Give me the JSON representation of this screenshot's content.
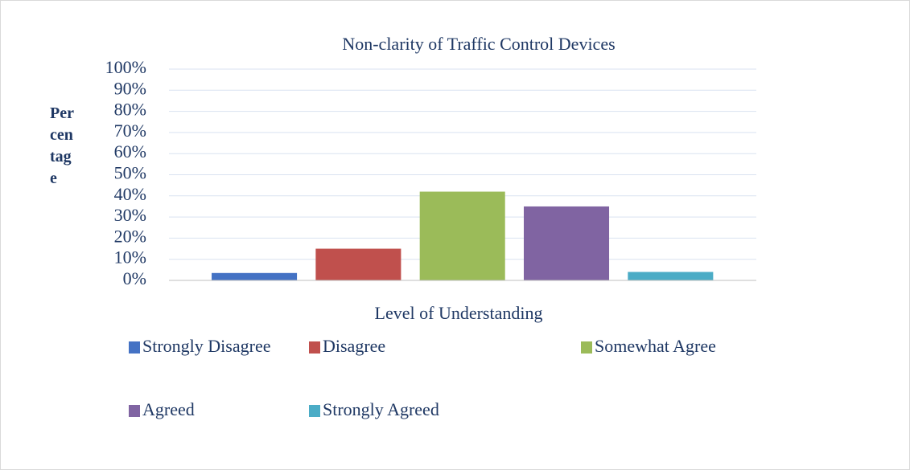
{
  "chart_data": {
    "type": "bar",
    "title": "Non-clarity of Traffic Control Devices",
    "xlabel": "Level of Understanding",
    "ylabel": "Percentage",
    "series": [
      {
        "name": "Strongly Disagree",
        "color": "#4472c4",
        "values": [
          3.5
        ]
      },
      {
        "name": "Disagree",
        "color": "#c0504d",
        "values": [
          15
        ]
      },
      {
        "name": "Somewhat Agree",
        "color": "#9bbb59",
        "values": [
          42
        ]
      },
      {
        "name": "Agreed",
        "color": "#8064a2",
        "values": [
          35
        ]
      },
      {
        "name": "Strongly Agreed",
        "color": "#4bacc6",
        "values": [
          4
        ]
      }
    ],
    "ylim": [
      0,
      100
    ],
    "yticks": [
      {
        "value": 0,
        "label": "0%"
      },
      {
        "value": 10,
        "label": "10%"
      },
      {
        "value": 20,
        "label": "20%"
      },
      {
        "value": 30,
        "label": "30%"
      },
      {
        "value": 40,
        "label": "40%"
      },
      {
        "value": 50,
        "label": "50%"
      },
      {
        "value": 60,
        "label": "60%"
      },
      {
        "value": 70,
        "label": "70%"
      },
      {
        "value": 80,
        "label": "80%"
      },
      {
        "value": 90,
        "label": "90%"
      },
      {
        "value": 100,
        "label": "100%"
      }
    ],
    "grid": true,
    "legend": "bottom"
  }
}
